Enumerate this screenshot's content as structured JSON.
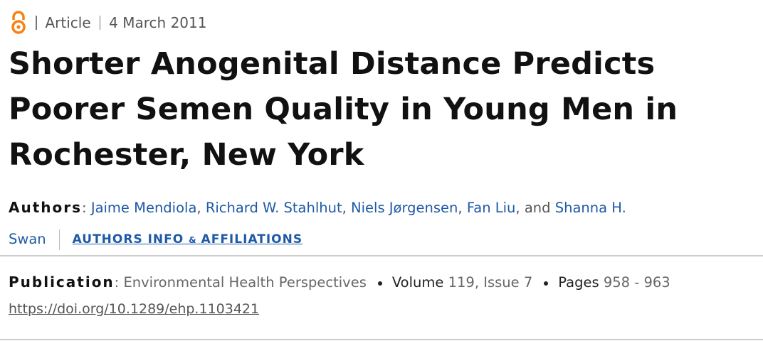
{
  "header": {
    "type": "Article",
    "date": "4 March 2011"
  },
  "title": "Shorter Anogenital Distance Predicts Poorer Semen Quality in Young Men in Rochester, New York",
  "authors": {
    "label": "Authors",
    "label_separator": ":",
    "name_separator": ",",
    "conjunction": "and",
    "names": [
      "Jaime Mendiola",
      "Richard W. Stahlhut",
      "Niels Jørgensen",
      "Fan Liu",
      "Shanna H. Swan"
    ],
    "info_link": [
      "AUTHORS INFO",
      "&",
      "AFFILIATIONS"
    ]
  },
  "publication": {
    "label": "Publication",
    "label_separator": ":",
    "journal": "Environmental Health Perspectives",
    "volume_label": "Volume",
    "volume": "119",
    "issue_separator": ",",
    "issue": "Issue 7",
    "pages_label": "Pages",
    "pages": "958 - 963",
    "doi": "https://doi.org/10.1289/ehp.1103421"
  }
}
